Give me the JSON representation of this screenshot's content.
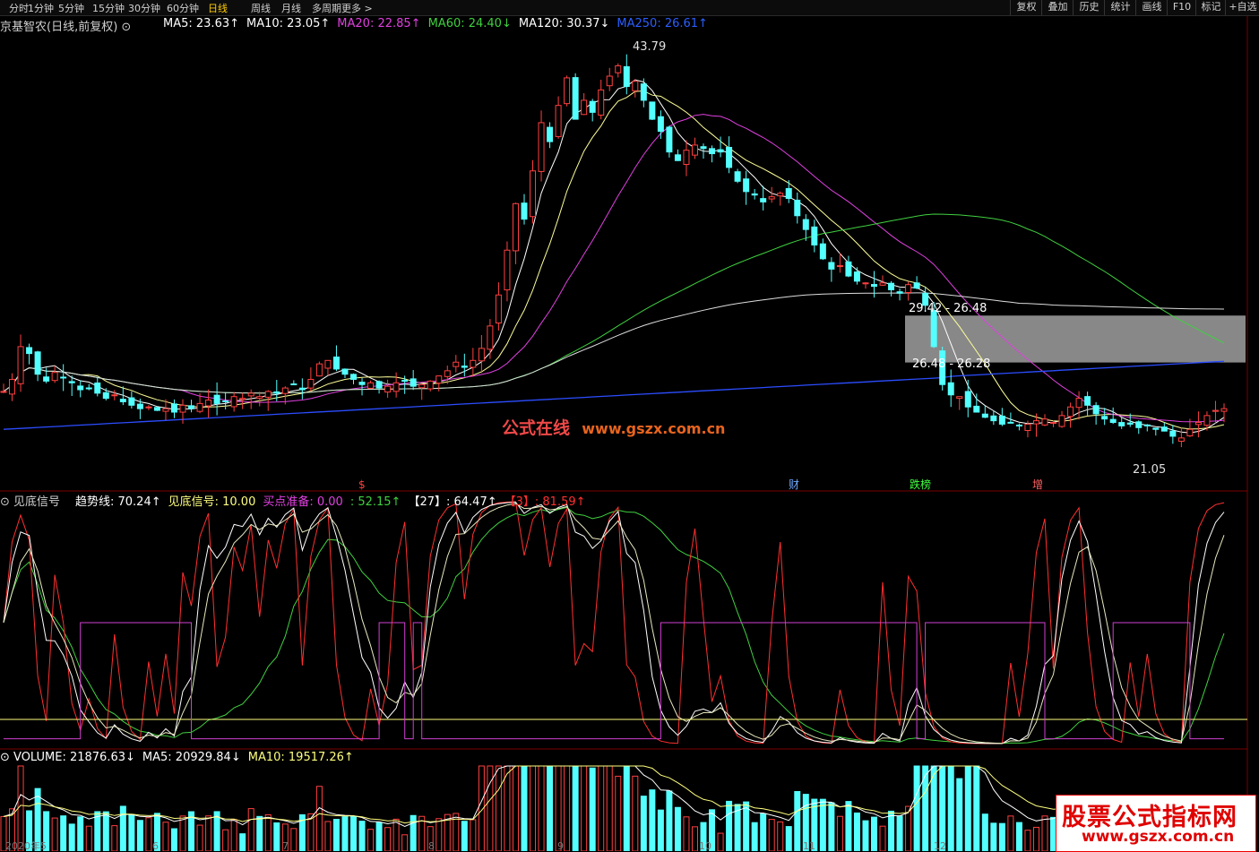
{
  "toolbar": {
    "periods": [
      "分时",
      "1分钟",
      "5分钟",
      "15分钟",
      "30分钟",
      "60分钟",
      "日线",
      "周线",
      "月线",
      "多周期",
      "更多 >"
    ],
    "active_period": "日线",
    "right_tools": [
      "复权",
      "叠加",
      "历史",
      "统计",
      "画线",
      "F10",
      "标记",
      "+自选"
    ]
  },
  "price_panel": {
    "stock": "京基智农(日线,前复权)",
    "ma": [
      {
        "label": "MA5: 23.63",
        "arrow": "↑",
        "color": "#ffffff"
      },
      {
        "label": "MA10: 23.05",
        "arrow": "↑",
        "color": "#ffffff"
      },
      {
        "label": "MA20: 22.85",
        "arrow": "↑",
        "color": "#e040e0"
      },
      {
        "label": "MA60: 24.40",
        "arrow": "↓",
        "color": "#40d040"
      },
      {
        "label": "MA120: 30.37",
        "arrow": "↓",
        "color": "#ffffff"
      },
      {
        "label": "MA250: 26.61",
        "arrow": "↑",
        "color": "#2b5fff"
      }
    ],
    "annotations": {
      "high": "43.79",
      "low": "21.05",
      "range1": "29.42 - 26.48",
      "range2": "26.48 - 26.28"
    },
    "event_markers": [
      "$",
      "财",
      "跌榜",
      "增"
    ],
    "date_labels": [
      "2020年5",
      "6",
      "7",
      "8",
      "9",
      "10",
      "11",
      "12"
    ]
  },
  "indicator_panel": {
    "name": "见底信号",
    "items": [
      {
        "label": "趋势线: 70.24",
        "arrow": "↑",
        "color": "#ffffff"
      },
      {
        "label": "见底信号: 10.00",
        "arrow": "",
        "color": "#ffff80"
      },
      {
        "label": "买点准备: 0.00",
        "arrow": "",
        "color": "#e040e0"
      },
      {
        "label": ": 52.15",
        "arrow": "↑",
        "color": "#40d040"
      },
      {
        "label": "【27】: 64.47",
        "arrow": "↑",
        "color": "#ffffff"
      },
      {
        "label": "【3】: 81.59",
        "arrow": "↑",
        "color": "#ff3030"
      }
    ]
  },
  "volume_panel": {
    "items": [
      {
        "label": "VOLUME: 21876.63",
        "arrow": "↓",
        "color": "#ffffff"
      },
      {
        "label": "MA5: 20929.84",
        "arrow": "↓",
        "color": "#ffffff"
      },
      {
        "label": "MA10: 19517.26",
        "arrow": "↑",
        "color": "#ffff80"
      }
    ]
  },
  "watermarks": {
    "center_cn": "公式在线",
    "center_url": "www.gszx.com.cn",
    "box_title": "股票公式指标网",
    "box_url": "www.gszx.com.cn"
  },
  "chart_data": {
    "type": "candlestick",
    "price_range": [
      19.5,
      45.5
    ],
    "closes": [
      24.6,
      25.3,
      27.2,
      26.8,
      25.6,
      25.2,
      25.7,
      25.4,
      25.1,
      24.7,
      24.8,
      24.5,
      24.2,
      24.4,
      24.0,
      23.8,
      23.6,
      23.7,
      23.5,
      23.6,
      23.4,
      23.8,
      23.6,
      23.9,
      24.1,
      23.9,
      24.0,
      24.3,
      24.2,
      24.5,
      24.3,
      24.6,
      24.5,
      24.8,
      25.0,
      24.7,
      25.3,
      26.2,
      26.4,
      25.9,
      25.6,
      25.3,
      25.0,
      25.1,
      24.8,
      24.9,
      25.1,
      25.2,
      24.9,
      25.0,
      25.2,
      25.5,
      25.8,
      26.3,
      26.0,
      26.4,
      27.1,
      28.4,
      30.2,
      32.8,
      35.5,
      34.6,
      37.4,
      40.2,
      39.1,
      41.2,
      42.8,
      40.4,
      41.5,
      40.8,
      42.1,
      42.9,
      43.5,
      42.3,
      42.6,
      41.5,
      40.4,
      39.7,
      38.5,
      38.0,
      38.6,
      38.9,
      38.7,
      38.4,
      38.5,
      37.6,
      36.8,
      36.2,
      36.0,
      35.6,
      35.9,
      36.1,
      35.8,
      34.8,
      34.0,
      33.1,
      32.3,
      31.7,
      31.9,
      31.3,
      31.0,
      30.9,
      30.7,
      30.9,
      30.5,
      30.3,
      30.8,
      30.6,
      29.6,
      27.2,
      25.0,
      24.4,
      24.3,
      23.7,
      23.4,
      23.1,
      22.9,
      22.7,
      22.8,
      22.6,
      22.7,
      22.9,
      23.0,
      22.8,
      23.2,
      23.7,
      24.2,
      23.8,
      23.3,
      23.0,
      22.8,
      22.6,
      22.7,
      22.5,
      22.6,
      22.4,
      22.3,
      22.0,
      21.9,
      22.4,
      22.8,
      23.2,
      23.5,
      23.6
    ]
  }
}
